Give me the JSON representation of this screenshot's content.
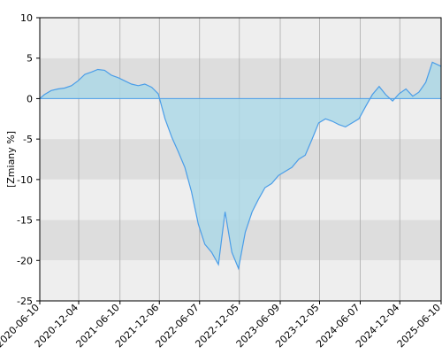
{
  "chart_data": {
    "type": "area",
    "title": "",
    "xlabel": "",
    "ylabel": "[Zmiany %]",
    "ylim": [
      -25,
      10
    ],
    "xlim": [
      "2020-06-10",
      "2025-06-10"
    ],
    "grid": true,
    "legend": "none",
    "y_ticks": [
      10,
      5,
      0,
      -5,
      -10,
      -15,
      -20,
      -25
    ],
    "y_tick_labels": [
      "10",
      "5",
      "0",
      "-5",
      "-10",
      "-15",
      "-20",
      "-25"
    ],
    "x_ticks": [
      "2020-06-10",
      "2020-12-04",
      "2021-06-10",
      "2021-12-06",
      "2022-06-07",
      "2022-12-05",
      "2023-06-09",
      "2023-12-05",
      "2024-06-07",
      "2024-12-04",
      "2025-06-10"
    ],
    "colors": {
      "line": "#4a9de8",
      "fill": "#add8e6",
      "band_light": "#eeeeee",
      "band_dark": "#dddddd",
      "zero_line": "#4a9de8",
      "grid_vertical": "#aaaaaa",
      "frame": "#000000"
    },
    "series": [
      {
        "x": [
          "2020-06-10",
          "2020-07-01",
          "2020-08-01",
          "2020-09-01",
          "2020-10-01",
          "2020-11-01",
          "2020-12-01",
          "2021-01-01",
          "2021-02-01",
          "2021-03-01",
          "2021-04-01",
          "2021-05-01",
          "2021-06-01",
          "2021-07-01",
          "2021-08-01",
          "2021-09-01",
          "2021-10-01",
          "2021-11-01",
          "2021-12-01",
          "2022-01-01",
          "2022-02-01",
          "2022-03-01",
          "2022-04-01",
          "2022-05-01",
          "2022-06-01",
          "2022-07-01",
          "2022-08-01",
          "2022-09-01",
          "2022-10-01",
          "2022-11-01",
          "2022-12-01",
          "2023-01-01",
          "2023-02-01",
          "2023-03-01",
          "2023-04-01",
          "2023-05-01",
          "2023-06-01",
          "2023-07-01",
          "2023-08-01",
          "2023-09-01",
          "2023-10-01",
          "2023-11-01",
          "2023-12-01",
          "2024-01-01",
          "2024-02-01",
          "2024-03-01",
          "2024-04-01",
          "2024-05-01",
          "2024-06-01",
          "2024-07-01",
          "2024-08-01",
          "2024-09-01",
          "2024-10-01",
          "2024-11-01",
          "2024-12-01",
          "2025-01-01",
          "2025-02-01",
          "2025-03-01",
          "2025-04-01",
          "2025-05-01",
          "2025-06-10"
        ],
        "values": [
          0.0,
          0.5,
          1.0,
          1.2,
          1.3,
          1.6,
          2.2,
          3.0,
          3.3,
          3.6,
          3.5,
          2.9,
          2.6,
          2.2,
          1.8,
          1.6,
          1.8,
          1.4,
          0.6,
          -2.5,
          -4.8,
          -6.5,
          -8.5,
          -11.5,
          -15.5,
          -18.0,
          -19.0,
          -20.5,
          -14.0,
          -19.0,
          -21.0,
          -16.5,
          -14.0,
          -12.5,
          -11.0,
          -10.5,
          -9.5,
          -9.0,
          -8.5,
          -7.5,
          -7.0,
          -5.0,
          -3.0,
          -2.5,
          -2.8,
          -3.2,
          -3.5,
          -3.0,
          -2.5,
          -1.0,
          0.5,
          1.5,
          0.5,
          -0.3,
          0.6,
          1.2,
          0.3,
          0.8,
          2.0,
          4.5,
          4.0
        ]
      }
    ]
  }
}
